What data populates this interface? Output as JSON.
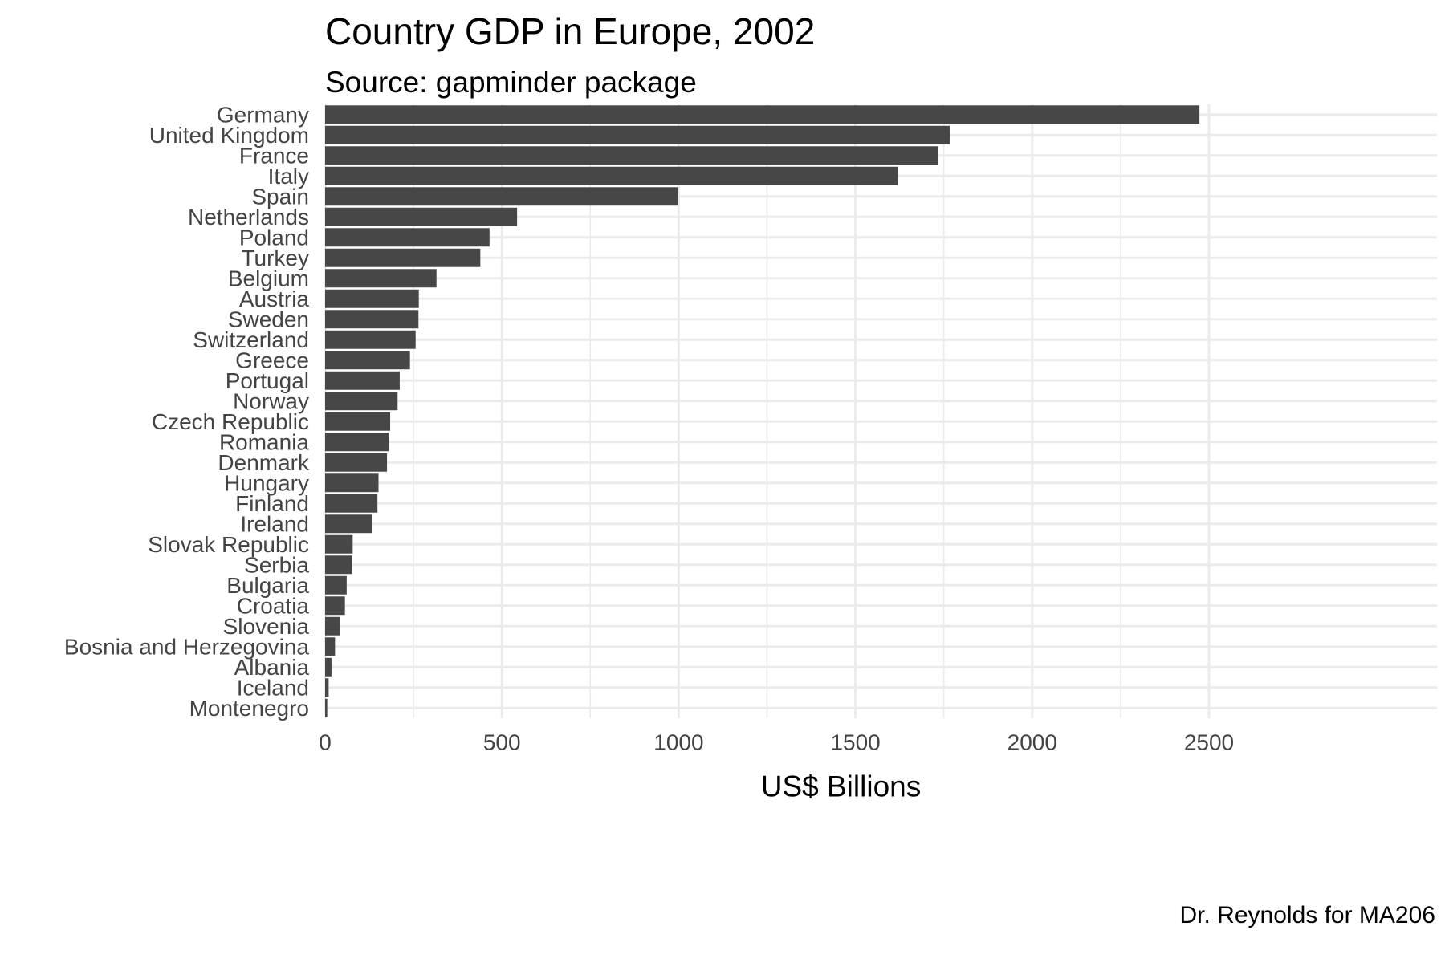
{
  "chart_data": {
    "type": "bar",
    "orientation": "horizontal",
    "title": "Country GDP in Europe, 2002",
    "subtitle": "Source: gapminder package",
    "caption": "Dr. Reynolds for MA206",
    "xlabel": "US$ Billions",
    "ylabel": "",
    "xlim": [
      0,
      2600
    ],
    "xticks": [
      0,
      500,
      1000,
      1500,
      2000,
      2500
    ],
    "grid": true,
    "bar_color": "#474747",
    "grid_color": "#ebebeb",
    "categories": [
      "Germany",
      "United Kingdom",
      "France",
      "Italy",
      "Spain",
      "Netherlands",
      "Poland",
      "Turkey",
      "Belgium",
      "Austria",
      "Sweden",
      "Switzerland",
      "Greece",
      "Portugal",
      "Norway",
      "Czech Republic",
      "Romania",
      "Denmark",
      "Hungary",
      "Finland",
      "Ireland",
      "Slovak Republic",
      "Serbia",
      "Bulgaria",
      "Croatia",
      "Slovenia",
      "Bosnia and Herzegovina",
      "Albania",
      "Iceland",
      "Montenegro"
    ],
    "values": [
      2473,
      1767,
      1733,
      1620,
      998,
      543,
      465,
      439,
      315,
      265,
      264,
      256,
      240,
      211,
      205,
      184,
      180,
      175,
      151,
      148,
      134,
      78,
      76,
      61,
      56,
      43,
      28,
      18,
      10,
      6
    ]
  }
}
